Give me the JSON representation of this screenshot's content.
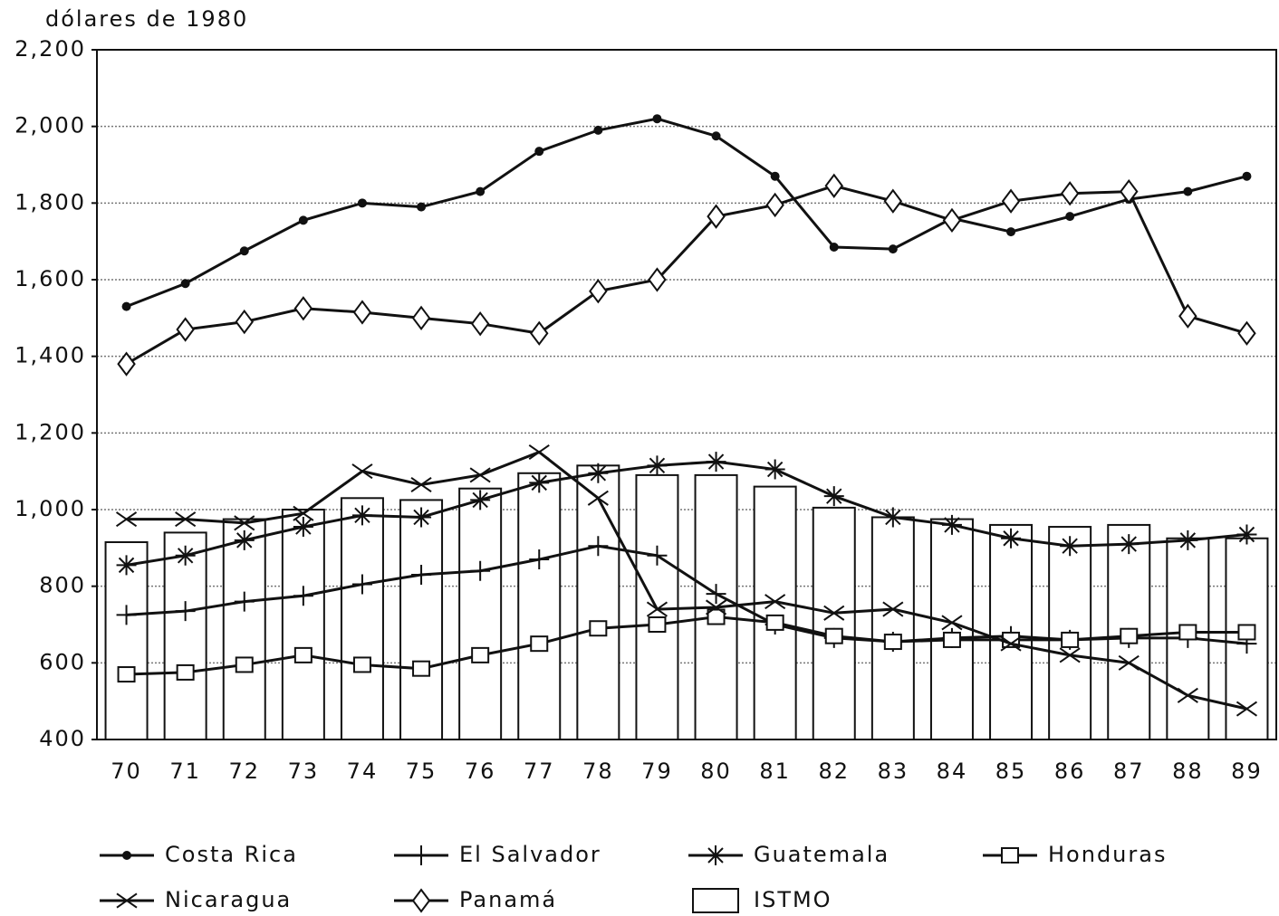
{
  "chart_data": {
    "type": "line",
    "y_label": "dólares de 1980",
    "categories": [
      "70",
      "71",
      "72",
      "73",
      "74",
      "75",
      "76",
      "77",
      "78",
      "79",
      "80",
      "81",
      "82",
      "83",
      "84",
      "85",
      "86",
      "87",
      "88",
      "89"
    ],
    "ylim": [
      400,
      2200
    ],
    "yticks": [
      {
        "value": 400,
        "label": "400"
      },
      {
        "value": 600,
        "label": "600"
      },
      {
        "value": 800,
        "label": "800"
      },
      {
        "value": 1000,
        "label": "1,000"
      },
      {
        "value": 1200,
        "label": "1,200"
      },
      {
        "value": 1400,
        "label": "1,400"
      },
      {
        "value": 1600,
        "label": "1,600"
      },
      {
        "value": 1800,
        "label": "1,800"
      },
      {
        "value": 2000,
        "label": "2,000"
      },
      {
        "value": 2200,
        "label": "2,200"
      }
    ],
    "grid": true,
    "legend": "bottom",
    "series": [
      {
        "name": "Costa Rica",
        "color": "#111111",
        "marker": "dot",
        "values": [
          1530,
          1590,
          1675,
          1755,
          1800,
          1790,
          1830,
          1935,
          1990,
          2020,
          1975,
          1870,
          1685,
          1680,
          1760,
          1725,
          1765,
          1810,
          1830,
          1870
        ]
      },
      {
        "name": "El Salvador",
        "color": "#111111",
        "marker": "plus",
        "values": [
          725,
          735,
          760,
          775,
          805,
          830,
          840,
          870,
          905,
          880,
          780,
          700,
          665,
          655,
          665,
          670,
          660,
          665,
          665,
          650
        ]
      },
      {
        "name": "Guatemala",
        "color": "#111111",
        "marker": "asterisk",
        "values": [
          855,
          880,
          920,
          955,
          985,
          980,
          1025,
          1070,
          1095,
          1115,
          1125,
          1105,
          1035,
          980,
          960,
          925,
          905,
          910,
          920,
          935
        ]
      },
      {
        "name": "Honduras",
        "color": "#111111",
        "marker": "square",
        "values": [
          570,
          575,
          595,
          620,
          595,
          585,
          620,
          650,
          690,
          700,
          720,
          705,
          670,
          655,
          660,
          660,
          660,
          670,
          680,
          680
        ]
      },
      {
        "name": "Nicaragua",
        "color": "#111111",
        "marker": "x",
        "values": [
          975,
          975,
          965,
          990,
          1100,
          1065,
          1090,
          1150,
          1030,
          740,
          745,
          760,
          730,
          740,
          705,
          650,
          620,
          600,
          515,
          480
        ]
      },
      {
        "name": "Panamá",
        "color": "#111111",
        "marker": "diamond",
        "values": [
          1380,
          1470,
          1490,
          1525,
          1515,
          1500,
          1485,
          1460,
          1570,
          1600,
          1765,
          1795,
          1845,
          1805,
          1755,
          1805,
          1825,
          1830,
          1505,
          1460
        ]
      },
      {
        "name": "ISTMO",
        "color": "#111111",
        "type": "bar",
        "values": [
          915,
          940,
          975,
          1000,
          1030,
          1025,
          1055,
          1095,
          1115,
          1090,
          1090,
          1060,
          1005,
          980,
          975,
          960,
          955,
          960,
          925,
          925
        ]
      }
    ]
  }
}
